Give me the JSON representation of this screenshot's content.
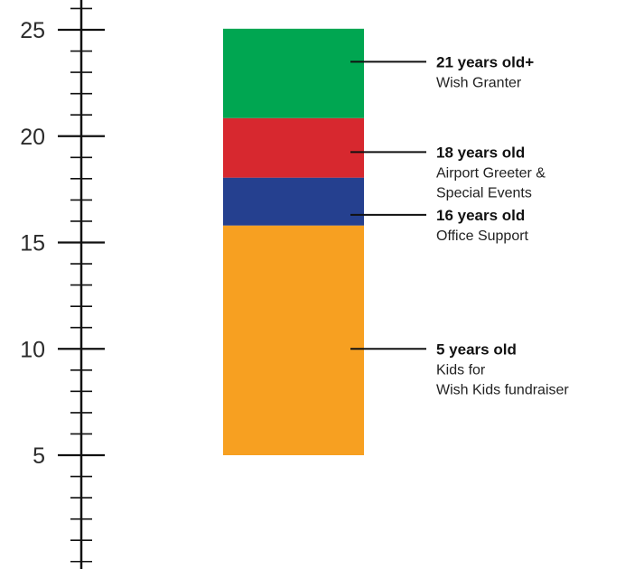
{
  "axis": {
    "min": 0,
    "max": 26,
    "major_ticks": [
      5,
      10,
      15,
      20,
      25
    ],
    "major_tick_labels": [
      "5",
      "10",
      "15",
      "20",
      "25"
    ],
    "minor_step": 1
  },
  "segments": [
    {
      "from": 5,
      "to": 15.8,
      "color": "#F7A021"
    },
    {
      "from": 15.8,
      "to": 18.05,
      "color": "#25408F"
    },
    {
      "from": 18.05,
      "to": 20.85,
      "color": "#D7282F"
    },
    {
      "from": 20.85,
      "to": 25.05,
      "color": "#00A651"
    }
  ],
  "callouts": [
    {
      "at": 23.5,
      "age": "21 years old+",
      "lines": [
        "Wish Granter"
      ]
    },
    {
      "at": 19.25,
      "age": "18 years old",
      "lines": [
        "Airport Greeter &",
        "Special Events"
      ]
    },
    {
      "at": 16.3,
      "age": "16 years old",
      "lines": [
        "Office Support"
      ]
    },
    {
      "at": 10.0,
      "age": "5 years old",
      "lines": [
        "Kids for",
        "Wish Kids fundraiser"
      ]
    }
  ]
}
